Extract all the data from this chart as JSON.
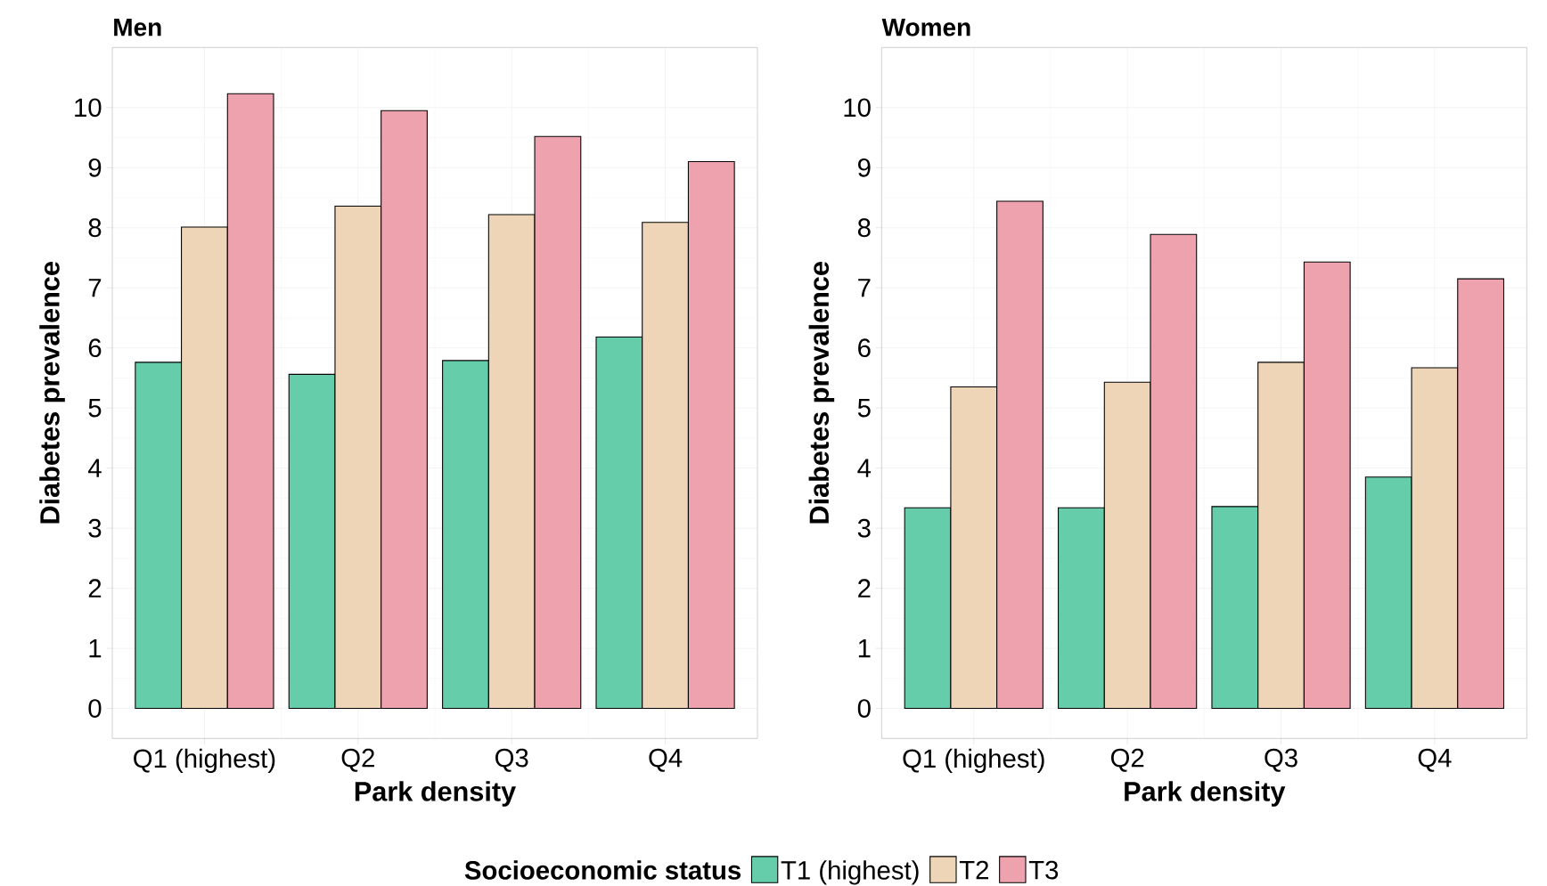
{
  "chart_data": [
    {
      "type": "bar",
      "title": "Men",
      "xlabel": "Park density",
      "ylabel": "Diabetes prevalence",
      "legend_title": "Socioeconomic status",
      "legend": "bottom",
      "grid": true,
      "categories": [
        "Q1 (highest)",
        "Q2",
        "Q3",
        "Q4"
      ],
      "series": [
        {
          "name": "T1 (highest)",
          "color": "#66cdaa",
          "values": [
            5.76,
            5.56,
            5.79,
            6.18
          ]
        },
        {
          "name": "T2",
          "color": "#eed5b7",
          "values": [
            8.01,
            8.36,
            8.22,
            8.09
          ]
        },
        {
          "name": "T3",
          "color": "#eea2ad",
          "values": [
            10.23,
            9.95,
            9.52,
            9.1
          ]
        }
      ],
      "ylim": [
        -0.5,
        11
      ],
      "yticks": [
        0,
        1,
        2,
        3,
        4,
        5,
        6,
        7,
        8,
        9,
        10
      ]
    },
    {
      "type": "bar",
      "title": "Women",
      "xlabel": "Park density",
      "ylabel": "Diabetes prevalence",
      "grid": true,
      "categories": [
        "Q1 (highest)",
        "Q2",
        "Q3",
        "Q4"
      ],
      "series": [
        {
          "color": "#66cdaa",
          "values": [
            3.34,
            3.34,
            3.36,
            3.85
          ]
        },
        {
          "color": "#eed5b7",
          "values": [
            5.35,
            5.43,
            5.76,
            5.67
          ]
        },
        {
          "color": "#eea2ad",
          "values": [
            8.44,
            7.89,
            7.43,
            7.15
          ]
        }
      ],
      "ylim": [
        -0.5,
        11
      ],
      "yticks": [
        0,
        1,
        2,
        3,
        4,
        5,
        6,
        7,
        8,
        9,
        10
      ]
    }
  ]
}
